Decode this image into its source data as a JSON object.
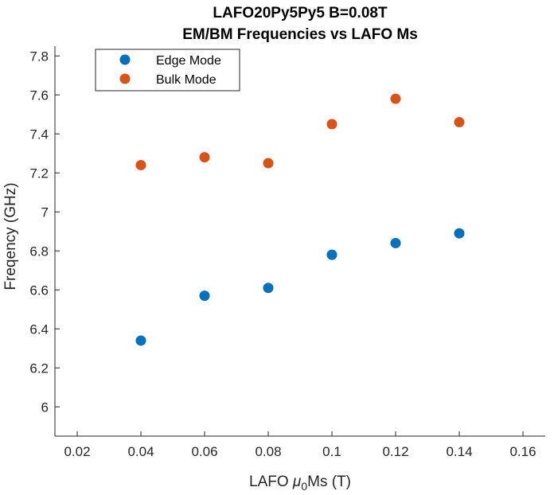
{
  "chart_data": {
    "type": "scatter",
    "title": [
      "LAFO20Py5Py5 B=0.08T",
      "EM/BM Frequencies vs LAFO Ms"
    ],
    "xlabel": {
      "prefix": "LAFO ",
      "symbol": "μ",
      "subscript": "0",
      "suffix": "Ms (T)"
    },
    "ylabel": "Freqency (GHz)",
    "xlim": [
      0.013,
      0.167
    ],
    "ylim": [
      5.85,
      7.85
    ],
    "xticks": [
      0.02,
      0.04,
      0.06,
      0.08,
      0.1,
      0.12,
      0.14,
      0.16
    ],
    "xtick_labels": [
      "0.02",
      "0.04",
      "0.06",
      "0.08",
      "0.1",
      "0.12",
      "0.14",
      "0.16"
    ],
    "yticks": [
      6,
      6.2,
      6.4,
      6.6,
      6.8,
      7,
      7.2,
      7.4,
      7.6,
      7.8
    ],
    "ytick_labels": [
      "6",
      "6.2",
      "6.4",
      "6.6",
      "6.8",
      "7",
      "7.2",
      "7.4",
      "7.6",
      "7.8"
    ],
    "grid": false,
    "legend_position": "top-left",
    "series": [
      {
        "name": "Edge Mode",
        "color": "#0072BD",
        "x": [
          0.04,
          0.06,
          0.08,
          0.1,
          0.12,
          0.14
        ],
        "y": [
          6.34,
          6.57,
          6.61,
          6.78,
          6.84,
          6.89
        ]
      },
      {
        "name": "Bulk Mode",
        "color": "#D95319",
        "x": [
          0.04,
          0.06,
          0.08,
          0.1,
          0.12,
          0.14
        ],
        "y": [
          7.24,
          7.28,
          7.25,
          7.45,
          7.58,
          7.46
        ]
      }
    ]
  }
}
